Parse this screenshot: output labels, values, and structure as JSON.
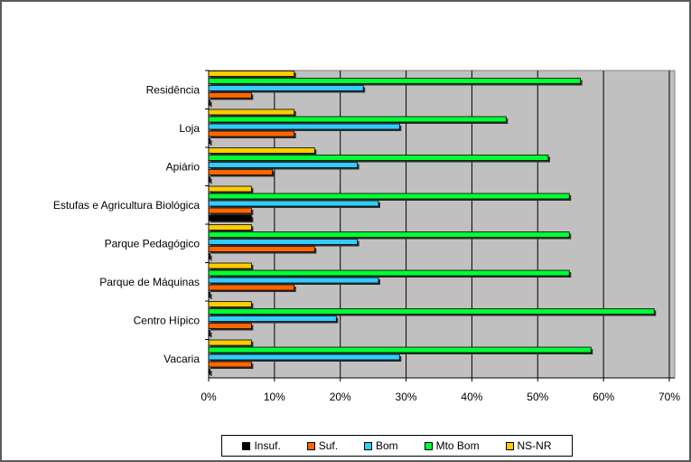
{
  "chart_data": {
    "type": "bar",
    "orientation": "horizontal",
    "categories": [
      "Residência",
      "Loja",
      "Apiário",
      "Estufas e Agricultura Biológica",
      "Parque Pedagógico",
      "Parque de Máquinas",
      "Centro Hípico",
      "Vacaria"
    ],
    "series": [
      {
        "name": "Insuf.",
        "color": "#000000",
        "values": [
          0,
          0,
          0,
          6.5,
          0,
          0,
          0,
          0
        ]
      },
      {
        "name": "Suf.",
        "color": "#ff6600",
        "values": [
          6.5,
          13,
          9.7,
          6.5,
          16.1,
          13,
          6.5,
          6.5
        ]
      },
      {
        "name": "Bom",
        "color": "#33ccff",
        "values": [
          23.5,
          29,
          22.6,
          25.8,
          22.6,
          25.8,
          19.4,
          29
        ]
      },
      {
        "name": "Mto Bom",
        "color": "#00ff33",
        "values": [
          56.5,
          45.2,
          51.6,
          54.8,
          54.8,
          54.8,
          67.7,
          58.1
        ]
      },
      {
        "name": "NS-NR",
        "color": "#ffcc00",
        "values": [
          13,
          13,
          16.1,
          6.5,
          6.5,
          6.5,
          6.5,
          6.5
        ]
      }
    ],
    "xticks": [
      "0%",
      "10%",
      "20%",
      "30%",
      "40%",
      "50%",
      "60%",
      "70%"
    ],
    "xlim": [
      0,
      70
    ],
    "plot_background": "#c0c0c0",
    "grid": true,
    "legend_position": "bottom"
  }
}
